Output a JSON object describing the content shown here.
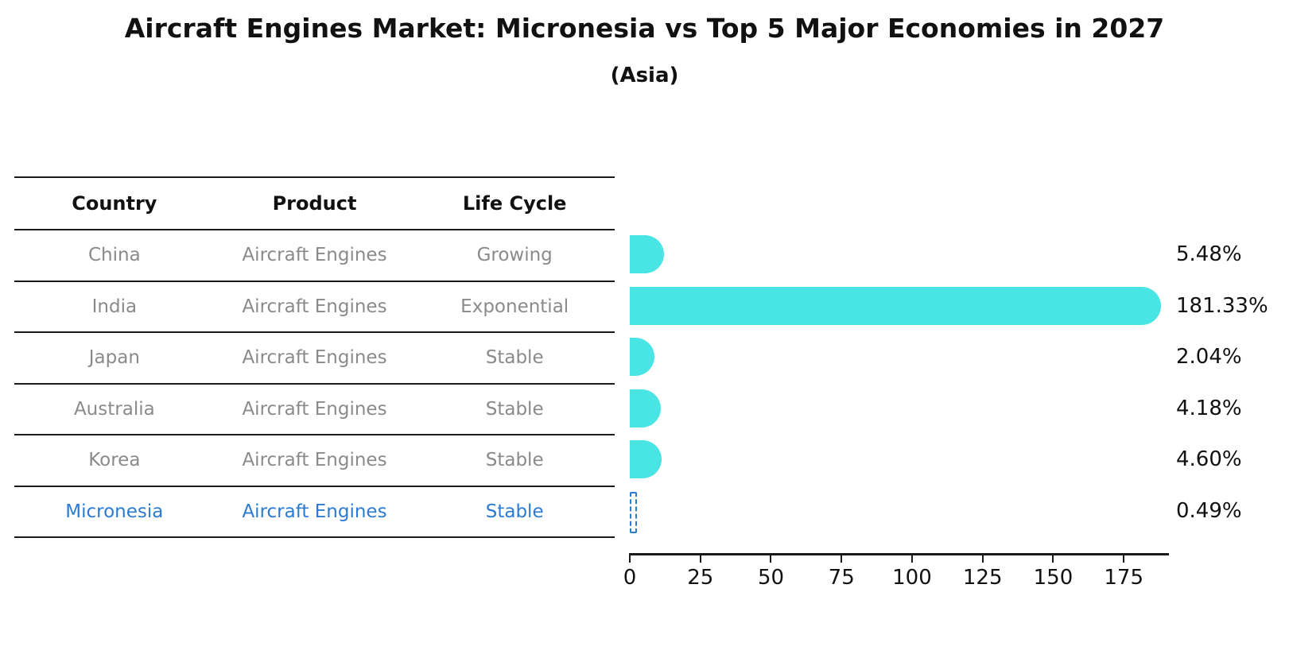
{
  "title": "Aircraft Engines Market: Micronesia vs Top 5 Major Economies in 2027",
  "subtitle": "(Asia)",
  "table": {
    "headers": [
      "Country",
      "Product",
      "Life Cycle"
    ],
    "rows": [
      {
        "country": "China",
        "product": "Aircraft Engines",
        "life_cycle": "Growing",
        "highlight": false
      },
      {
        "country": "India",
        "product": "Aircraft Engines",
        "life_cycle": "Exponential",
        "highlight": false
      },
      {
        "country": "Japan",
        "product": "Aircraft Engines",
        "life_cycle": "Stable",
        "highlight": false
      },
      {
        "country": "Australia",
        "product": "Aircraft Engines",
        "life_cycle": "Stable",
        "highlight": false
      },
      {
        "country": "Korea",
        "product": "Aircraft Engines",
        "life_cycle": "Stable",
        "highlight": false
      },
      {
        "country": "Micronesia",
        "product": "Aircraft Engines",
        "life_cycle": "Stable",
        "highlight": true
      }
    ]
  },
  "chart_data": {
    "type": "bar",
    "orientation": "horizontal",
    "title": "Aircraft Engines Market: Micronesia vs Top 5 Major Economies in 2027",
    "subtitle": "(Asia)",
    "categories": [
      "China",
      "India",
      "Japan",
      "Australia",
      "Korea",
      "Micronesia"
    ],
    "values": [
      5.48,
      181.33,
      2.04,
      4.18,
      4.6,
      0.49
    ],
    "value_labels": [
      "5.48%",
      "181.33%",
      "2.04%",
      "4.18%",
      "4.60%",
      "0.49%"
    ],
    "highlight_index": 5,
    "xlabel": "",
    "ylabel": "",
    "xlim": [
      0,
      191
    ],
    "xticks": [
      0,
      25,
      50,
      75,
      100,
      125,
      150,
      175
    ],
    "xtick_labels": [
      "0",
      "25",
      "50",
      "75",
      "100",
      "125",
      "150",
      "175"
    ],
    "grid": false,
    "legend": false
  },
  "colors": {
    "bar": "#48e5e4",
    "highlight": "#2c7bd2",
    "text": "#111111",
    "muted_text": "#8a8a8a",
    "line": "#1a1a1a"
  }
}
